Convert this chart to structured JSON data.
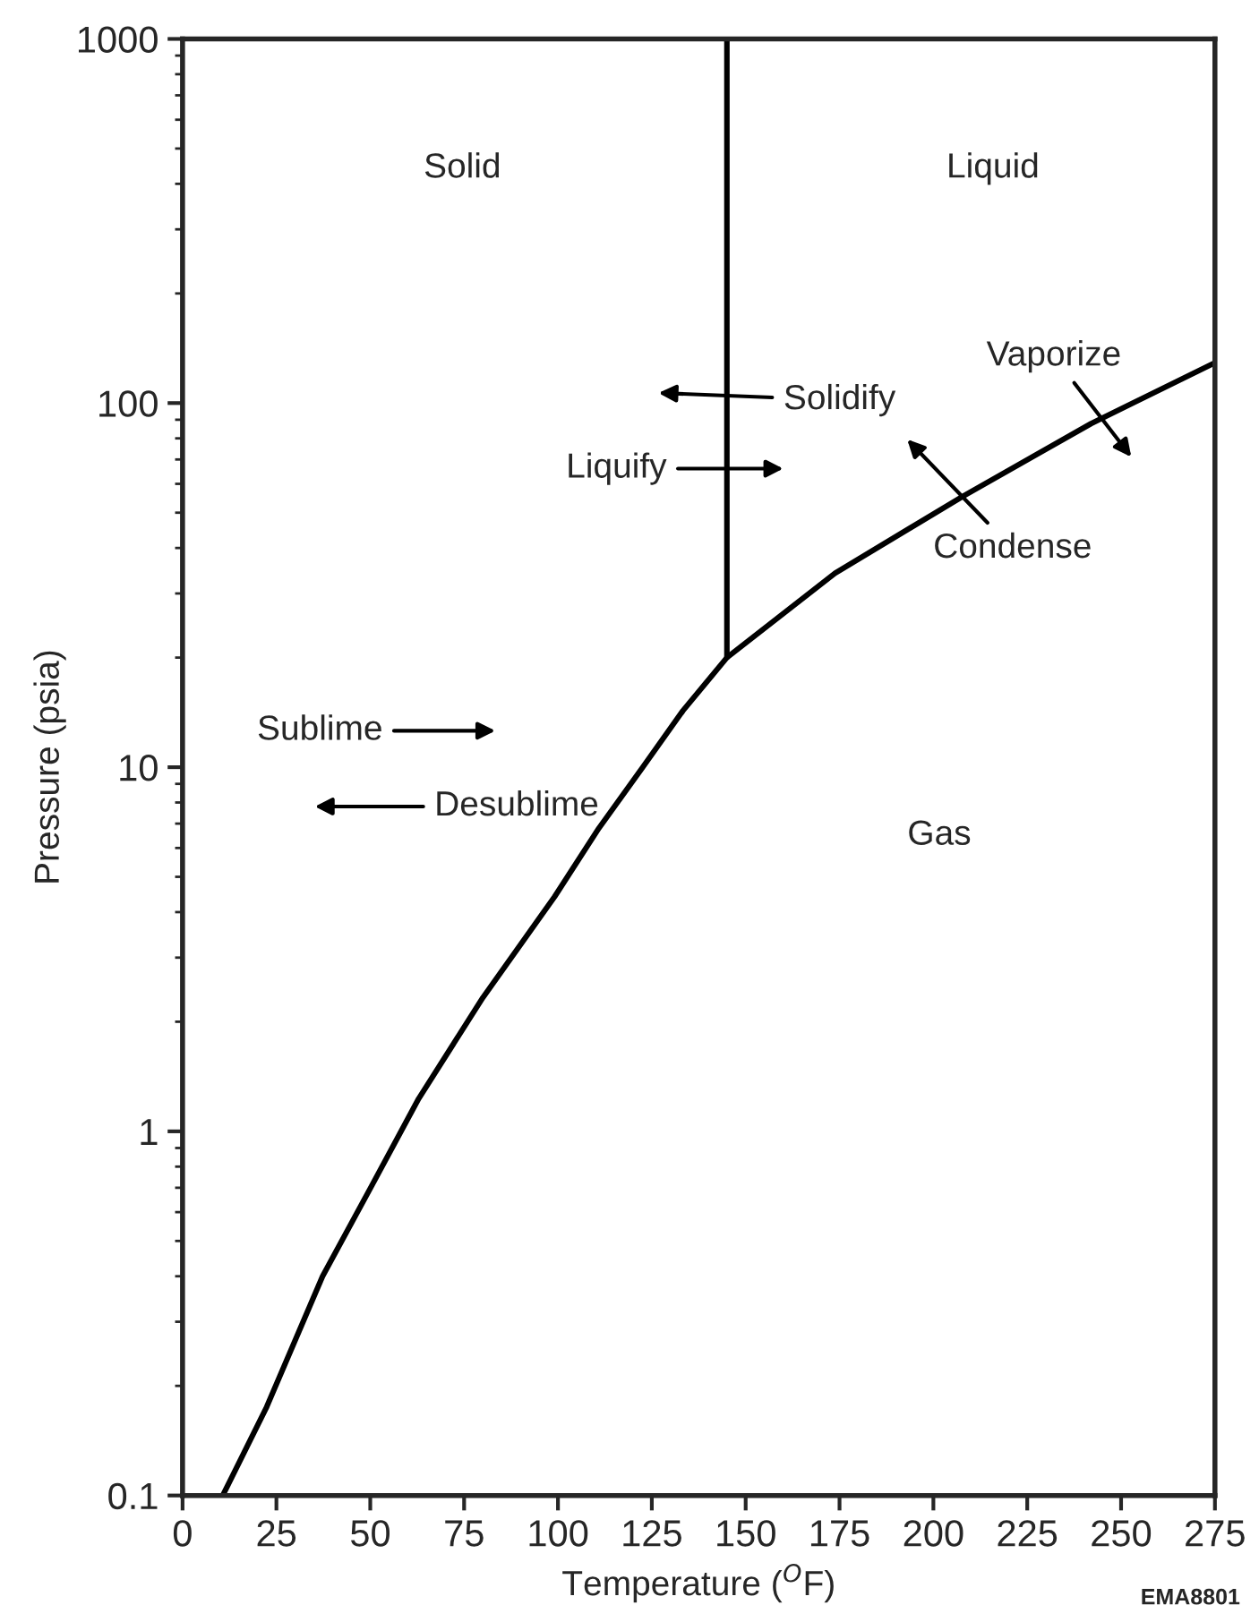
{
  "chart_data": {
    "type": "line",
    "xlabel": "Temperature ($^{O}$F)",
    "ylabel": "Pressure (psia)",
    "series": [
      {
        "color": "#000000",
        "x": [
          10.7,
          22.4,
          37.3,
          50.1,
          62.9,
          80,
          99.1,
          110.9,
          122.6,
          133.3,
          145,
          173.8,
          207.9,
          242,
          275
        ],
        "values": [
          0.1,
          0.175,
          0.4,
          0.7,
          1.23,
          2.33,
          4.41,
          6.8,
          10,
          14.3,
          20,
          34.1,
          55.5,
          87.8,
          129
        ]
      },
      {
        "color": "#000000",
        "x": [
          145,
          145
        ],
        "values": [
          20,
          1000
        ]
      }
    ],
    "log": "y",
    "xlim": [
      0,
      275
    ],
    "ylim": [
      0.1,
      1000
    ],
    "xticks": [
      0,
      25,
      50,
      75,
      100,
      125,
      150,
      175,
      200,
      225,
      250,
      275
    ],
    "yticks": [
      0.1,
      1,
      10,
      100,
      1000
    ],
    "grid": false,
    "legend": false,
    "marker": "none",
    "line_style": "solid",
    "annotations": [
      "Solid",
      "Liquid",
      "Solidify",
      "Liquify",
      "Vaporize",
      "Condense",
      "Sublime",
      "Desublime",
      "Gas",
      "EMA8801"
    ]
  }
}
